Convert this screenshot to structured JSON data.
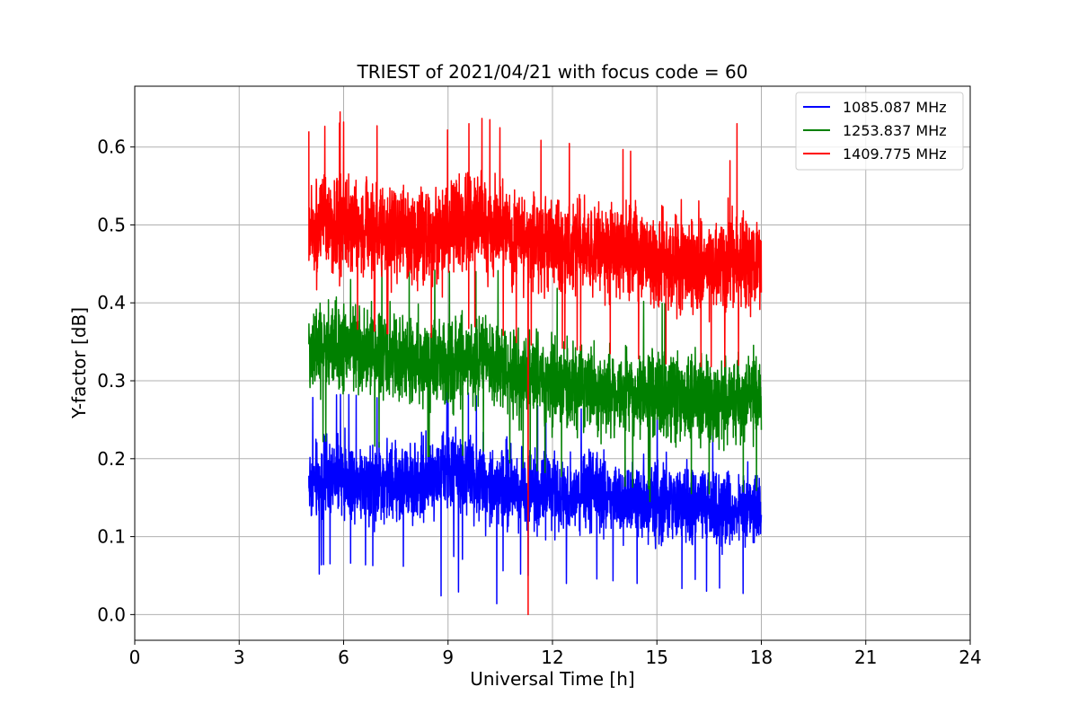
{
  "chart_data": {
    "type": "line",
    "title": "TRIEST of 2021/04/21 with focus code = 60",
    "xlabel": "Universal Time [h]",
    "ylabel": "Y-factor [dB]",
    "xlim": [
      0,
      24
    ],
    "ylim": [
      -0.033,
      0.678
    ],
    "xticks": [
      0,
      3,
      6,
      9,
      12,
      15,
      18,
      21,
      24
    ],
    "yticks": [
      0.0,
      0.1,
      0.2,
      0.3,
      0.4,
      0.5,
      0.6
    ],
    "grid": true,
    "legend_position": "top-right",
    "x_range_of_data": [
      5.0,
      18.0
    ],
    "series": [
      {
        "name": "1085.087 MHz",
        "color": "#0000ff",
        "noise_amplitude": 0.045,
        "trend": {
          "x": [
            5,
            6,
            7,
            8,
            9,
            10,
            11,
            12,
            13,
            14,
            15,
            16,
            17,
            18
          ],
          "y": [
            0.17,
            0.175,
            0.17,
            0.17,
            0.185,
            0.17,
            0.16,
            0.16,
            0.155,
            0.15,
            0.145,
            0.14,
            0.135,
            0.135
          ]
        },
        "spikes": [
          {
            "x": 8.8,
            "y": 0.024
          },
          {
            "x": 9.3,
            "y": 0.029
          },
          {
            "x": 10.4,
            "y": 0.014
          },
          {
            "x": 11.3,
            "y": 0.05
          },
          {
            "x": 5.3,
            "y": 0.052
          },
          {
            "x": 12.4,
            "y": 0.04
          },
          {
            "x": 16.1,
            "y": 0.045
          },
          {
            "x": 16.8,
            "y": 0.034
          },
          {
            "x": 9.0,
            "y": 0.295
          }
        ]
      },
      {
        "name": "1253.837 MHz",
        "color": "#008000",
        "noise_amplitude": 0.05,
        "trend": {
          "x": [
            5,
            6,
            7,
            8,
            9,
            10,
            11,
            12,
            13,
            14,
            15,
            16,
            17,
            18
          ],
          "y": [
            0.34,
            0.345,
            0.335,
            0.325,
            0.32,
            0.33,
            0.31,
            0.3,
            0.29,
            0.285,
            0.28,
            0.275,
            0.275,
            0.28
          ]
        },
        "spikes": [
          {
            "x": 9.8,
            "y": 0.44
          },
          {
            "x": 6.2,
            "y": 0.43
          },
          {
            "x": 16.5,
            "y": 0.155
          },
          {
            "x": 14.8,
            "y": 0.145
          }
        ]
      },
      {
        "name": "1409.775 MHz",
        "color": "#ff0000",
        "noise_amplitude": 0.055,
        "trend": {
          "x": [
            5,
            6,
            7,
            8,
            9,
            10,
            11,
            12,
            13,
            14,
            15,
            16,
            17,
            18
          ],
          "y": [
            0.49,
            0.5,
            0.495,
            0.485,
            0.49,
            0.505,
            0.48,
            0.475,
            0.47,
            0.465,
            0.455,
            0.45,
            0.45,
            0.455
          ]
        },
        "spikes": [
          {
            "x": 11.3,
            "y": 0.0
          },
          {
            "x": 5.0,
            "y": 0.62
          },
          {
            "x": 5.9,
            "y": 0.645
          },
          {
            "x": 9.6,
            "y": 0.63
          },
          {
            "x": 17.3,
            "y": 0.63
          },
          {
            "x": 10.2,
            "y": 0.635
          }
        ]
      }
    ]
  }
}
